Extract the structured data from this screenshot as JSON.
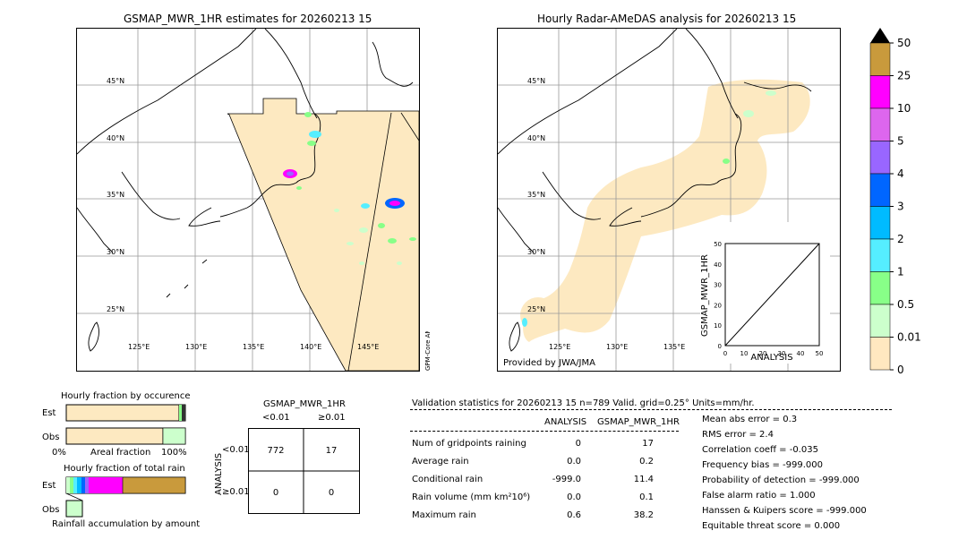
{
  "left_map": {
    "title": "GSMAP_MWR_1HR estimates for 20260213 15",
    "lat_labels": [
      "45°N",
      "40°N",
      "35°N",
      "30°N",
      "25°N"
    ],
    "lon_labels": [
      "125°E",
      "130°E",
      "135°E",
      "140°E",
      "145°E"
    ],
    "corner_text": "GPM-Core AMSR2"
  },
  "right_map": {
    "title": "Hourly Radar-AMeDAS analysis for 20260213 15",
    "lat_labels": [
      "45°N",
      "40°N",
      "35°N",
      "30°N",
      "25°N"
    ],
    "lon_labels": [
      "125°E",
      "130°E",
      "135°E"
    ],
    "credit": "Provided by JWA/JMA"
  },
  "colorbar": {
    "labels": [
      "50",
      "25",
      "10",
      "5",
      "4",
      "3",
      "2",
      "1",
      "0.5",
      "0.01",
      "0"
    ],
    "colors": [
      "#c99a3c",
      "#ff00ff",
      "#dd66ee",
      "#9966ff",
      "#0066ff",
      "#00bbff",
      "#55eeff",
      "#88ff88",
      "#ccffcc",
      "#ffe8c0"
    ]
  },
  "scatter_inset": {
    "ylabel": "GSMAP_MWR_1HR",
    "xlabel": "ANALYSIS",
    "ticks": [
      "0",
      "10",
      "20",
      "30",
      "40",
      "50"
    ]
  },
  "fraction_occurrence": {
    "title": "Hourly fraction by occurence",
    "rows": [
      "Est",
      "Obs"
    ],
    "axis_left": "0%",
    "axis_mid": "Areal fraction",
    "axis_right": "100%"
  },
  "fraction_total": {
    "title": "Hourly fraction of total rain",
    "rows": [
      "Est",
      "Obs"
    ],
    "footer": "Rainfall accumulation by amount"
  },
  "contingency": {
    "title": "GSMAP_MWR_1HR",
    "col_headers": [
      "<0.01",
      "≥0.01"
    ],
    "side_label": "ANALYSIS",
    "row_headers": [
      "<0.01",
      "≥0.01"
    ],
    "cells": [
      [
        "772",
        "17"
      ],
      [
        "0",
        "0"
      ]
    ]
  },
  "validation": {
    "header": "Validation statistics for 20260213 15  n=789 Valid. grid=0.25° Units=mm/hr.",
    "col_analysis": "ANALYSIS",
    "col_gsmap": "GSMAP_MWR_1HR",
    "rows": [
      {
        "label": "Num of gridpoints raining",
        "analysis": "0",
        "gsmap": "17"
      },
      {
        "label": "Average rain",
        "analysis": "0.0",
        "gsmap": "0.2"
      },
      {
        "label": "Conditional rain",
        "analysis": "-999.0",
        "gsmap": "11.4"
      },
      {
        "label": "Rain volume (mm km²10⁶)",
        "analysis": "0.0",
        "gsmap": "0.1"
      },
      {
        "label": "Maximum rain",
        "analysis": "0.6",
        "gsmap": "38.2"
      }
    ],
    "scores": [
      "Mean abs error =    0.3",
      "RMS error =    2.4",
      "Correlation coeff = -0.035",
      "Frequency bias = -999.000",
      "Probability of detection = -999.000",
      "False alarm ratio =  1.000",
      "Hanssen & Kuipers score = -999.000",
      "Equitable threat score =  0.000"
    ]
  },
  "chart_data": [
    {
      "type": "table",
      "title": "GSMAP_MWR_1HR",
      "columns": [
        "<0.01",
        "≥0.01"
      ],
      "rows": [
        "<0.01",
        "≥0.01"
      ],
      "values": [
        [
          772,
          17
        ],
        [
          0,
          0
        ]
      ]
    },
    {
      "type": "bar",
      "title": "Hourly fraction by occurence",
      "categories": [
        "Est",
        "Obs"
      ],
      "series": [
        {
          "values": [
            0.95,
            0.81
          ]
        },
        {
          "values": [
            0.05,
            0.19
          ]
        }
      ]
    },
    {
      "type": "bar",
      "title": "Hourly fraction of total rain",
      "categories": [
        "Est",
        "Obs"
      ],
      "series": [
        {
          "values": [
            0.5,
            0
          ]
        },
        {
          "values": [
            0.5,
            1.0
          ]
        }
      ]
    },
    {
      "type": "scatter",
      "xlabel": "ANALYSIS",
      "ylabel": "GSMAP_MWR_1HR",
      "xlim": [
        0,
        50
      ],
      "ylim": [
        0,
        50
      ]
    }
  ]
}
